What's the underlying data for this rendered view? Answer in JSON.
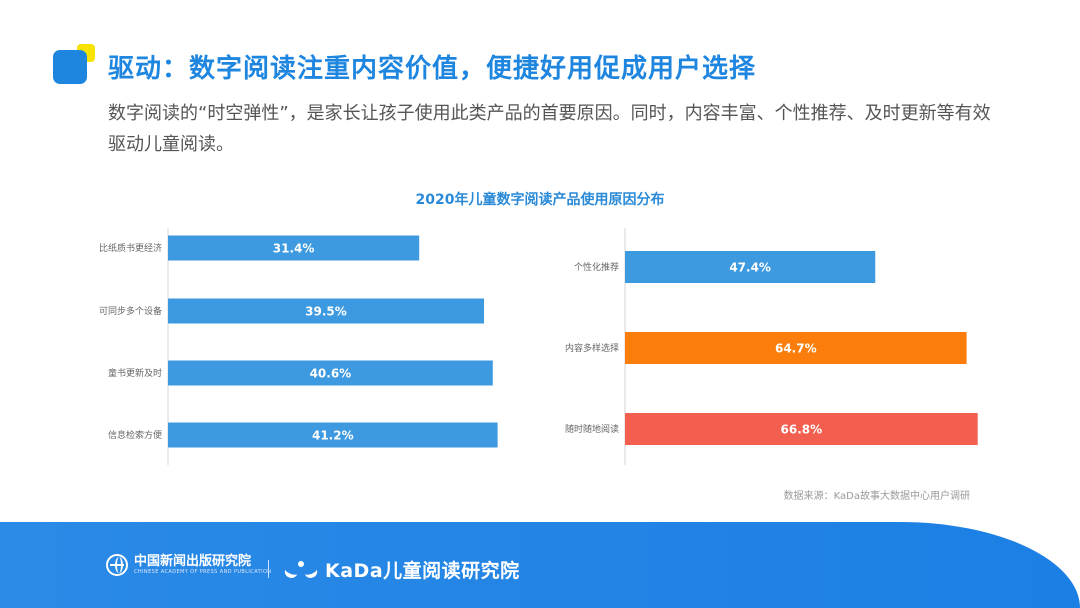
{
  "header": {
    "title": "驱动：数字阅读注重内容价值，便捷好用促成用户选择",
    "subtitle": "数字阅读的“时空弹性”，是家长让孩子使用此类产品的首要原因。同时，内容丰富、个性推荐、及时更新等有效驱动儿童阅读。"
  },
  "chart_data": {
    "type": "bar",
    "orientation": "horizontal",
    "title": "2020年儿童数字阅读产品使用原因分布",
    "source": "数据来源：KaDa故事大数据中心用户调研",
    "unit": "%",
    "xlim": [
      0,
      100
    ],
    "grid": false,
    "panels": [
      {
        "categories": [
          "比纸质书更经济",
          "可同步多个设备",
          "童书更新及时",
          "信息检索方便"
        ],
        "values": [
          31.4,
          39.5,
          40.6,
          41.2
        ],
        "labels": [
          "31.4%",
          "39.5%",
          "40.6%",
          "41.2%"
        ],
        "colors": [
          "#3d9ae0",
          "#3d9ae0",
          "#3d9ae0",
          "#3d9ae0"
        ]
      },
      {
        "categories": [
          "个性化推荐",
          "内容多样选择",
          "随时随地阅读"
        ],
        "values": [
          47.4,
          64.7,
          66.8
        ],
        "labels": [
          "47.4%",
          "64.7%",
          "66.8%"
        ],
        "colors": [
          "#3d9ae0",
          "#fb7d0b",
          "#f25f4f"
        ]
      }
    ]
  },
  "footer": {
    "org1_name": "中国新闻出版研究院",
    "org1_name_en": "CHINESE ACADEMY OF PRESS AND PUBLICATION",
    "org2_name": "KaDa儿童阅读研究院"
  }
}
